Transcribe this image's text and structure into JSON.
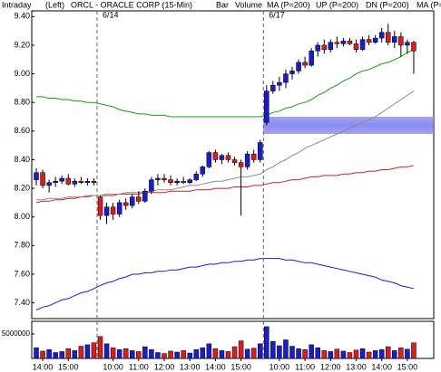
{
  "header": {
    "mode": "Intraday",
    "side": "(Left)",
    "title": "ORCL - ORACLE CORP (15-Min)"
  },
  "chart_data": {
    "type": "candlestick",
    "bar_label": "Bar",
    "categories": [
      null,
      "14:00",
      null,
      null,
      null,
      "15:00",
      null,
      null,
      null,
      null,
      null,
      null,
      "10:00",
      null,
      null,
      null,
      "11:00",
      null,
      null,
      null,
      "12:00",
      null,
      null,
      null,
      "13:00",
      null,
      null,
      null,
      "14:00",
      null,
      null,
      null,
      "15:00",
      null,
      null,
      null,
      null,
      null,
      "10:00",
      null,
      null,
      null,
      "11:00",
      null,
      null,
      null,
      "12:00",
      null,
      null,
      null,
      "13:00",
      null,
      null,
      null,
      "14:00",
      null,
      null,
      null,
      "15:00",
      null
    ],
    "open": [
      8.26,
      8.31,
      8.22,
      8.24,
      8.25,
      8.27,
      8.23,
      8.25,
      8.24,
      8.25,
      8.14,
      8.01,
      8.07,
      8.02,
      8.1,
      8.08,
      8.14,
      8.11,
      8.18,
      8.26,
      8.27,
      8.26,
      8.24,
      8.25,
      8.24,
      8.26,
      8.3,
      8.35,
      8.45,
      8.4,
      8.43,
      8.4,
      8.38,
      8.35,
      8.44,
      8.4,
      8.66,
      8.88,
      8.92,
      8.94,
      9.0,
      9.02,
      9.08,
      9.06,
      9.16,
      9.2,
      9.17,
      9.22,
      9.21,
      9.23,
      9.21,
      9.17,
      9.24,
      9.22,
      9.25,
      9.29,
      9.22,
      9.26,
      9.2,
      9.22
    ],
    "high": [
      8.34,
      8.33,
      8.26,
      8.28,
      8.29,
      8.3,
      8.27,
      8.28,
      8.27,
      8.27,
      8.15,
      8.1,
      8.1,
      8.12,
      8.13,
      8.16,
      8.18,
      8.2,
      8.28,
      8.3,
      8.3,
      8.29,
      8.27,
      8.28,
      8.27,
      8.32,
      8.36,
      8.46,
      8.47,
      8.44,
      8.45,
      8.42,
      8.4,
      8.46,
      8.47,
      8.54,
      8.92,
      8.95,
      8.98,
      9.03,
      9.05,
      9.1,
      9.12,
      9.18,
      9.22,
      9.24,
      9.24,
      9.26,
      9.25,
      9.25,
      9.24,
      9.26,
      9.27,
      9.27,
      9.32,
      9.35,
      9.3,
      9.29,
      9.24,
      9.23
    ],
    "low": [
      8.22,
      8.2,
      8.17,
      8.21,
      8.23,
      8.22,
      8.21,
      8.23,
      8.22,
      8.22,
      7.98,
      7.95,
      7.98,
      8.0,
      8.05,
      8.06,
      8.09,
      8.1,
      8.16,
      8.22,
      8.24,
      8.22,
      8.22,
      8.23,
      8.23,
      8.25,
      8.28,
      8.34,
      8.38,
      8.37,
      8.38,
      8.36,
      8.01,
      8.33,
      8.38,
      8.38,
      8.64,
      8.86,
      8.88,
      8.9,
      8.96,
      9.0,
      9.04,
      9.05,
      9.12,
      9.14,
      9.15,
      9.18,
      9.19,
      9.2,
      9.15,
      9.16,
      9.2,
      9.21,
      9.22,
      9.2,
      9.18,
      9.12,
      9.14,
      9.0
    ],
    "close": [
      8.31,
      8.22,
      8.24,
      8.25,
      8.27,
      8.23,
      8.25,
      8.24,
      8.25,
      8.24,
      8.01,
      8.07,
      8.02,
      8.1,
      8.08,
      8.14,
      8.11,
      8.18,
      8.26,
      8.27,
      8.26,
      8.24,
      8.25,
      8.24,
      8.26,
      8.3,
      8.35,
      8.45,
      8.4,
      8.43,
      8.4,
      8.38,
      8.35,
      8.44,
      8.4,
      8.52,
      8.88,
      8.92,
      8.94,
      9.0,
      9.02,
      9.08,
      9.06,
      9.16,
      9.2,
      9.17,
      9.22,
      9.21,
      9.23,
      9.21,
      9.17,
      9.24,
      9.22,
      9.25,
      9.29,
      9.22,
      9.26,
      9.2,
      9.22,
      9.16
    ],
    "up_color": "#1c1cc8",
    "down_color": "#d42020",
    "series": [
      {
        "name": "MA (P=200)",
        "color": "#d42020",
        "values": [
          8.1,
          8.11,
          8.11,
          8.12,
          8.12,
          8.13,
          8.13,
          8.14,
          8.14,
          8.15,
          8.15,
          8.15,
          8.15,
          8.16,
          8.16,
          8.16,
          8.16,
          8.17,
          8.17,
          8.17,
          8.17,
          8.18,
          8.18,
          8.18,
          8.18,
          8.19,
          8.19,
          8.19,
          8.2,
          8.2,
          8.2,
          8.21,
          8.21,
          8.21,
          8.22,
          8.22,
          8.23,
          8.24,
          8.24,
          8.25,
          8.26,
          8.26,
          8.27,
          8.28,
          8.28,
          8.29,
          8.29,
          8.29,
          8.3,
          8.3,
          8.31,
          8.31,
          8.32,
          8.32,
          8.33,
          8.33,
          8.34,
          8.35,
          8.35,
          8.36
        ]
      },
      {
        "name": "UP (P=200)",
        "color": "#10a010",
        "values": [
          8.84,
          8.84,
          8.83,
          8.83,
          8.82,
          8.82,
          8.81,
          8.81,
          8.8,
          8.8,
          8.79,
          8.78,
          8.77,
          8.75,
          8.74,
          8.73,
          8.72,
          8.72,
          8.71,
          8.71,
          8.71,
          8.7,
          8.7,
          8.7,
          8.7,
          8.7,
          8.7,
          8.7,
          8.7,
          8.7,
          8.7,
          8.7,
          8.7,
          8.7,
          8.7,
          8.7,
          8.71,
          8.73,
          8.74,
          8.76,
          8.77,
          8.79,
          8.8,
          8.82,
          8.85,
          8.87,
          8.9,
          8.92,
          8.95,
          8.97,
          9.0,
          9.02,
          9.03,
          9.05,
          9.07,
          9.08,
          9.1,
          9.12,
          9.15,
          9.17
        ]
      },
      {
        "name": "DN (P=200)",
        "color": "#1c1cc8",
        "values": [
          7.35,
          7.37,
          7.38,
          7.4,
          7.42,
          7.43,
          7.45,
          7.47,
          7.48,
          7.5,
          7.52,
          7.54,
          7.55,
          7.57,
          7.58,
          7.6,
          7.6,
          7.61,
          7.61,
          7.62,
          7.62,
          7.63,
          7.63,
          7.64,
          7.65,
          7.65,
          7.66,
          7.67,
          7.67,
          7.68,
          7.68,
          7.69,
          7.69,
          7.7,
          7.7,
          7.71,
          7.71,
          7.71,
          7.71,
          7.7,
          7.7,
          7.69,
          7.68,
          7.68,
          7.67,
          7.66,
          7.65,
          7.64,
          7.63,
          7.62,
          7.61,
          7.6,
          7.59,
          7.58,
          7.56,
          7.55,
          7.54,
          7.52,
          7.51,
          7.5
        ]
      },
      {
        "name": "MA (P=",
        "color": "#8c8c8c",
        "values": [
          8.12,
          8.12,
          8.13,
          8.13,
          8.13,
          8.14,
          8.14,
          8.14,
          8.15,
          8.15,
          8.15,
          8.16,
          8.16,
          8.16,
          8.17,
          8.17,
          8.17,
          8.18,
          8.18,
          8.19,
          8.19,
          8.19,
          8.2,
          8.21,
          8.22,
          8.22,
          8.23,
          8.24,
          8.25,
          8.25,
          8.26,
          8.27,
          8.28,
          8.28,
          8.29,
          8.3,
          8.33,
          8.35,
          8.38,
          8.4,
          8.43,
          8.45,
          8.48,
          8.5,
          8.52,
          8.54,
          8.56,
          8.58,
          8.6,
          8.62,
          8.64,
          8.66,
          8.68,
          8.7,
          8.73,
          8.76,
          8.79,
          8.82,
          8.85,
          8.88
        ]
      }
    ],
    "ylim": [
      7.29,
      9.44
    ],
    "yticks": [
      {
        "value": 7.4,
        "label": "7.40"
      },
      {
        "value": 7.6,
        "label": "7.60"
      },
      {
        "value": 7.8,
        "label": "7.80"
      },
      {
        "value": 8.0,
        "label": "8.00"
      },
      {
        "value": 8.2,
        "label": "8.20"
      },
      {
        "value": 8.4,
        "label": "8.40"
      },
      {
        "value": 8.6,
        "label": "8.60"
      },
      {
        "value": 8.8,
        "label": "8.80"
      },
      {
        "value": 9.0,
        "label": "9.00"
      },
      {
        "value": 9.2,
        "label": "9.20"
      },
      {
        "value": 9.4,
        "label": "9.40"
      }
    ],
    "annotations": [
      {
        "text": "6/14",
        "category": 10
      },
      {
        "text": "6/17",
        "category": 36
      }
    ],
    "highlight_band": [
      8.58,
      8.7
    ],
    "highlight_color": "#6f6ff0",
    "volume": {
      "name": "Volume",
      "color": "#10a010",
      "values": [
        2200000,
        1500000,
        1800000,
        1200000,
        1400000,
        2000000,
        1600000,
        2500000,
        2800000,
        3200000,
        4500000,
        3000000,
        2200000,
        1800000,
        2000000,
        1600000,
        1400000,
        2400000,
        1800000,
        1200000,
        1000000,
        1500000,
        1300000,
        1600000,
        1100000,
        1800000,
        2200000,
        3000000,
        2000000,
        1600000,
        1400000,
        2400000,
        3600000,
        1900000,
        2100000,
        3000000,
        6500000,
        3500000,
        2600000,
        3800000,
        2500000,
        2000000,
        1800000,
        2800000,
        2200000,
        1600000,
        1400000,
        1900000,
        1500000,
        1200000,
        1700000,
        2000000,
        1300000,
        1600000,
        1800000,
        2400000,
        1600000,
        2200000,
        1900000,
        3200000
      ],
      "ylim": [
        0,
        7600000
      ],
      "yticks": [
        5000000
      ]
    }
  }
}
